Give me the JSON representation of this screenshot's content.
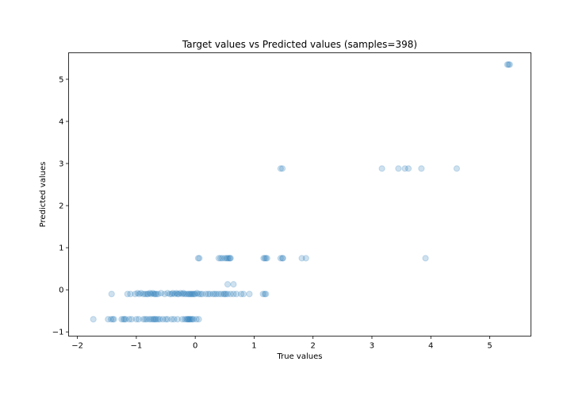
{
  "chart_data": {
    "type": "scatter",
    "title": "Target values vs Predicted values (samples=398)",
    "xlabel": "True values",
    "ylabel": "Predicted values",
    "xlim": [
      -2.15,
      5.7
    ],
    "ylim": [
      -1.1,
      5.63
    ],
    "xticks": [
      -2,
      -1,
      0,
      1,
      2,
      3,
      4,
      5
    ],
    "yticks": [
      -1,
      0,
      1,
      2,
      3,
      4,
      5
    ],
    "grid": false,
    "legend": "none",
    "point_color": "#1f77b4",
    "point_alpha": 0.22,
    "series": [
      {
        "points": [
          [
            -1.73,
            -0.7
          ],
          [
            -1.48,
            -0.7
          ],
          [
            -1.43,
            -0.7
          ],
          [
            -1.4,
            -0.7
          ],
          [
            -1.38,
            -0.7
          ],
          [
            -1.25,
            -0.7
          ],
          [
            -1.22,
            -0.7
          ],
          [
            -1.2,
            -0.7
          ],
          [
            -1.18,
            -0.7
          ],
          [
            -1.12,
            -0.7
          ],
          [
            -1.08,
            -0.7
          ],
          [
            -1.0,
            -0.7
          ],
          [
            -0.96,
            -0.7
          ],
          [
            -0.88,
            -0.7
          ],
          [
            -0.85,
            -0.7
          ],
          [
            -0.82,
            -0.7
          ],
          [
            -0.78,
            -0.7
          ],
          [
            -0.75,
            -0.7
          ],
          [
            -0.72,
            -0.7
          ],
          [
            -0.7,
            -0.7
          ],
          [
            -0.68,
            -0.7
          ],
          [
            -0.66,
            -0.7
          ],
          [
            -0.63,
            -0.7
          ],
          [
            -0.6,
            -0.7
          ],
          [
            -0.55,
            -0.7
          ],
          [
            -0.5,
            -0.7
          ],
          [
            -0.47,
            -0.7
          ],
          [
            -0.4,
            -0.7
          ],
          [
            -0.36,
            -0.7
          ],
          [
            -0.3,
            -0.7
          ],
          [
            -0.22,
            -0.7
          ],
          [
            -0.18,
            -0.7
          ],
          [
            -0.15,
            -0.7
          ],
          [
            -0.13,
            -0.7
          ],
          [
            -0.12,
            -0.7
          ],
          [
            -0.1,
            -0.7
          ],
          [
            -0.09,
            -0.7
          ],
          [
            -0.07,
            -0.7
          ],
          [
            -0.05,
            -0.7
          ],
          [
            -0.03,
            -0.7
          ],
          [
            0.02,
            -0.7
          ],
          [
            0.06,
            -0.7
          ],
          [
            -1.42,
            -0.1
          ],
          [
            -1.15,
            -0.1
          ],
          [
            -1.1,
            -0.1
          ],
          [
            -1.02,
            -0.1
          ],
          [
            -0.98,
            -0.08
          ],
          [
            -0.95,
            -0.1
          ],
          [
            -0.92,
            -0.08
          ],
          [
            -0.88,
            -0.1
          ],
          [
            -0.85,
            -0.1
          ],
          [
            -0.82,
            -0.1
          ],
          [
            -0.8,
            -0.1
          ],
          [
            -0.77,
            -0.08
          ],
          [
            -0.75,
            -0.1
          ],
          [
            -0.72,
            -0.08
          ],
          [
            -0.7,
            -0.1
          ],
          [
            -0.68,
            -0.1
          ],
          [
            -0.66,
            -0.1
          ],
          [
            -0.63,
            -0.1
          ],
          [
            -0.58,
            -0.08
          ],
          [
            -0.52,
            -0.1
          ],
          [
            -0.47,
            -0.08
          ],
          [
            -0.43,
            -0.1
          ],
          [
            -0.4,
            -0.1
          ],
          [
            -0.38,
            -0.08
          ],
          [
            -0.35,
            -0.1
          ],
          [
            -0.32,
            -0.08
          ],
          [
            -0.3,
            -0.1
          ],
          [
            -0.28,
            -0.1
          ],
          [
            -0.25,
            -0.08
          ],
          [
            -0.22,
            -0.1
          ],
          [
            -0.2,
            -0.08
          ],
          [
            -0.18,
            -0.1
          ],
          [
            -0.15,
            -0.1
          ],
          [
            -0.12,
            -0.1
          ],
          [
            -0.1,
            -0.1
          ],
          [
            -0.08,
            -0.1
          ],
          [
            -0.06,
            -0.1
          ],
          [
            -0.04,
            -0.1
          ],
          [
            -0.02,
            -0.1
          ],
          [
            0.0,
            -0.1
          ],
          [
            0.03,
            -0.08
          ],
          [
            0.06,
            -0.1
          ],
          [
            0.09,
            -0.1
          ],
          [
            0.12,
            -0.1
          ],
          [
            0.18,
            -0.1
          ],
          [
            0.22,
            -0.1
          ],
          [
            0.25,
            -0.1
          ],
          [
            0.3,
            -0.1
          ],
          [
            0.33,
            -0.1
          ],
          [
            0.36,
            -0.1
          ],
          [
            0.4,
            -0.1
          ],
          [
            0.44,
            -0.1
          ],
          [
            0.48,
            -0.1
          ],
          [
            0.5,
            -0.1
          ],
          [
            0.52,
            -0.1
          ],
          [
            0.55,
            -0.1
          ],
          [
            0.6,
            -0.1
          ],
          [
            0.65,
            -0.1
          ],
          [
            0.7,
            -0.1
          ],
          [
            0.78,
            -0.1
          ],
          [
            0.82,
            -0.1
          ],
          [
            0.92,
            -0.1
          ],
          [
            1.15,
            -0.1
          ],
          [
            1.18,
            -0.1
          ],
          [
            1.2,
            -0.1
          ],
          [
            0.55,
            0.13
          ],
          [
            0.65,
            0.13
          ],
          [
            0.05,
            0.75
          ],
          [
            0.07,
            0.75
          ],
          [
            0.4,
            0.75
          ],
          [
            0.43,
            0.75
          ],
          [
            0.46,
            0.75
          ],
          [
            0.5,
            0.75
          ],
          [
            0.53,
            0.75
          ],
          [
            0.55,
            0.75
          ],
          [
            0.57,
            0.75
          ],
          [
            0.59,
            0.75
          ],
          [
            0.6,
            0.75
          ],
          [
            1.16,
            0.75
          ],
          [
            1.18,
            0.75
          ],
          [
            1.2,
            0.75
          ],
          [
            1.22,
            0.75
          ],
          [
            1.45,
            0.75
          ],
          [
            1.48,
            0.75
          ],
          [
            1.49,
            0.75
          ],
          [
            1.81,
            0.75
          ],
          [
            1.88,
            0.75
          ],
          [
            3.91,
            0.75
          ],
          [
            1.45,
            2.88
          ],
          [
            1.48,
            2.88
          ],
          [
            3.17,
            2.88
          ],
          [
            3.45,
            2.88
          ],
          [
            3.56,
            2.88
          ],
          [
            3.62,
            2.88
          ],
          [
            3.84,
            2.88
          ],
          [
            4.44,
            2.88
          ],
          [
            5.3,
            5.35
          ],
          [
            5.32,
            5.35
          ],
          [
            5.34,
            5.35
          ]
        ]
      }
    ]
  }
}
